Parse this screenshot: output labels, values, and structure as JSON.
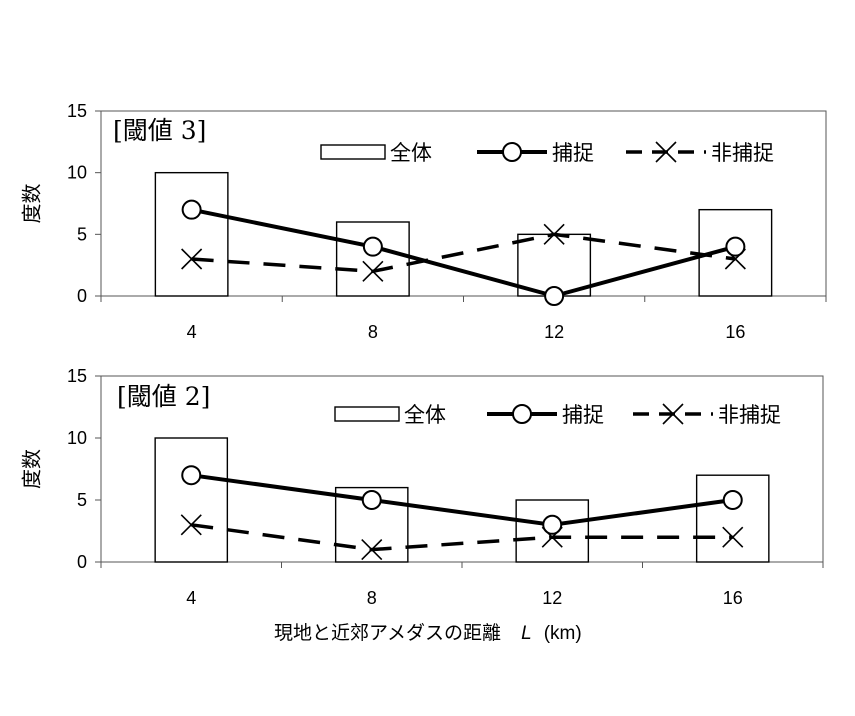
{
  "chart_data": [
    {
      "type": "bar",
      "annotation": "[閾値 3]",
      "ylabel": "度数",
      "categories": [
        "4",
        "8",
        "12",
        "16"
      ],
      "ylim": [
        0,
        15
      ],
      "yticks": [
        "0",
        "5",
        "10",
        "15"
      ],
      "grid": false,
      "legend_position": "top-right",
      "series": [
        {
          "name": "全体",
          "kind": "bar",
          "values": [
            10,
            6,
            5,
            7
          ]
        },
        {
          "name": "捕捉",
          "kind": "line",
          "style": "solid",
          "marker": "circle",
          "values": [
            7,
            4,
            0,
            4
          ]
        },
        {
          "name": "非捕捉",
          "kind": "line",
          "style": "dashed",
          "marker": "x",
          "values": [
            3,
            2,
            5,
            3
          ]
        }
      ]
    },
    {
      "type": "bar",
      "annotation": "[閾値 2]",
      "ylabel": "度数",
      "categories": [
        "4",
        "8",
        "12",
        "16"
      ],
      "ylim": [
        0,
        15
      ],
      "yticks": [
        "0",
        "5",
        "10",
        "15"
      ],
      "grid": false,
      "legend_position": "top-right",
      "series": [
        {
          "name": "全体",
          "kind": "bar",
          "values": [
            10,
            6,
            5,
            7
          ]
        },
        {
          "name": "捕捉",
          "kind": "line",
          "style": "solid",
          "marker": "circle",
          "values": [
            7,
            5,
            3,
            5
          ]
        },
        {
          "name": "非捕捉",
          "kind": "line",
          "style": "dashed",
          "marker": "x",
          "values": [
            3,
            1,
            2,
            2
          ]
        }
      ]
    }
  ],
  "xlabel": "現地と近郊アメダスの距離",
  "xlabel_var": "L",
  "xlabel_unit": "(km)",
  "colors": {
    "line": "#000000",
    "bar_fill": "#ffffff",
    "background": "#ffffff"
  }
}
